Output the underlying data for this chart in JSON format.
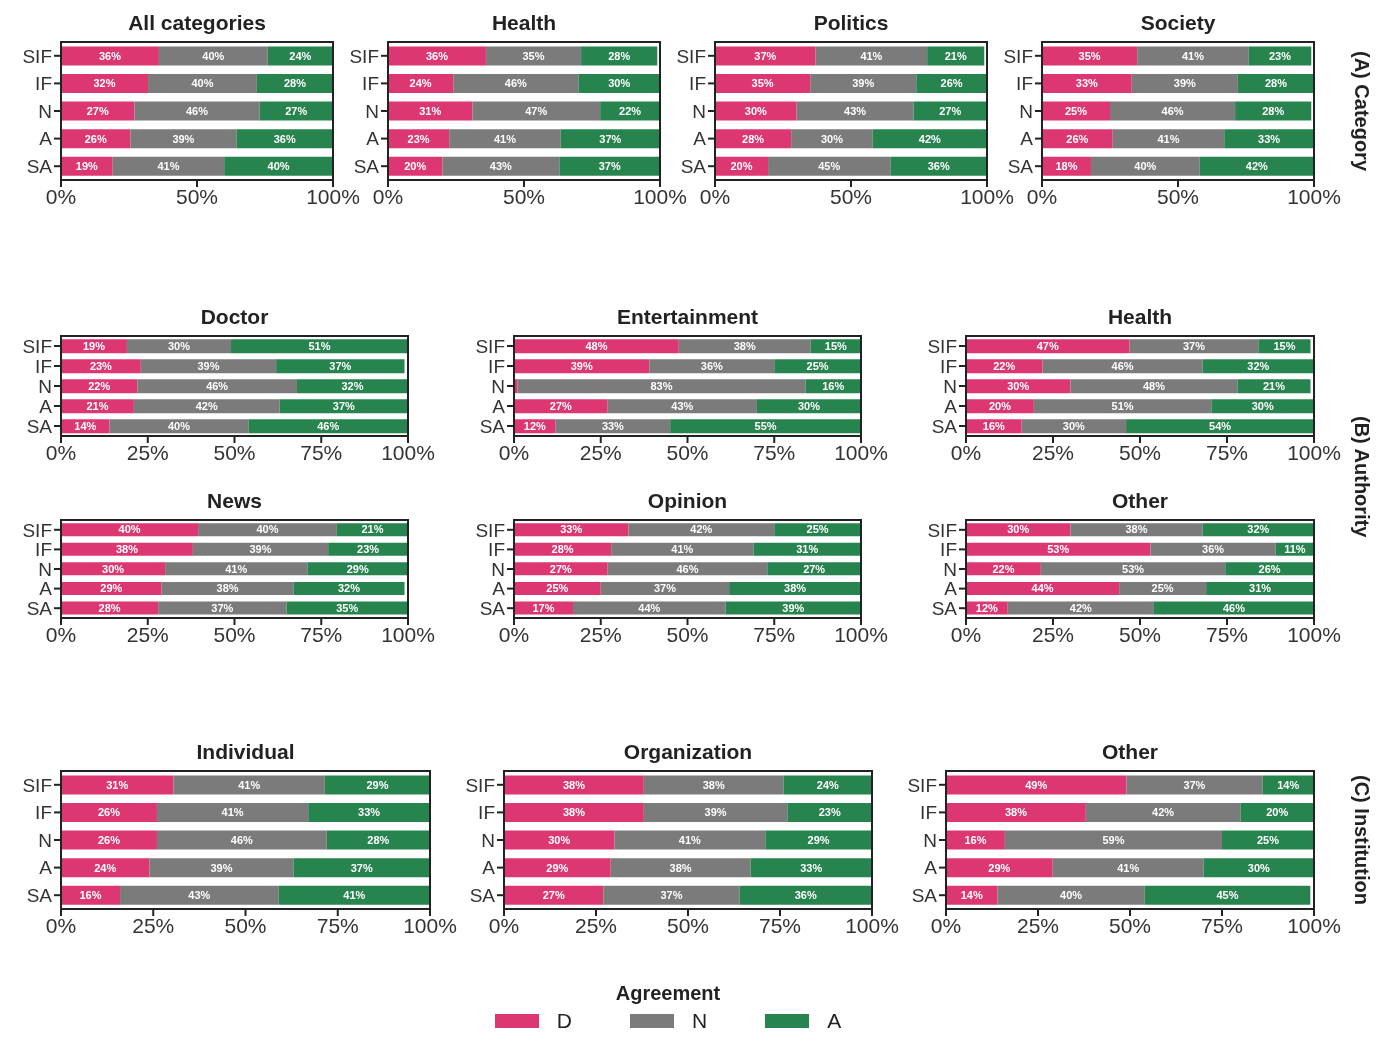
{
  "chart_data": [
    {
      "type": "bar",
      "orientation": "horizontal",
      "stacked": true,
      "title": "All categories",
      "legend": "bottom",
      "legend_title": "Agreement",
      "categories": [
        "SIF",
        "IF",
        "N",
        "A",
        "SA"
      ],
      "xlim": [
        0,
        100
      ],
      "xticks": [
        {
          "value": 0,
          "label": "0%"
        },
        {
          "value": 50,
          "label": "50%"
        },
        {
          "value": 100,
          "label": "100%"
        }
      ],
      "series": [
        {
          "name": "D",
          "color": "#dc3773",
          "values": [
            36,
            32,
            27,
            25.5,
            19
          ],
          "value_labels": [
            "36%",
            "32%",
            "27%",
            "26%",
            "19%"
          ]
        },
        {
          "name": "N",
          "color": "#7b7b7b",
          "values": [
            40,
            40,
            46,
            39,
            41
          ],
          "value_labels": [
            "40%",
            "40%",
            "46%",
            "39%",
            "41%"
          ]
        },
        {
          "name": "A",
          "color": "#27844f",
          "values": [
            24,
            28,
            27,
            35.5,
            40
          ],
          "value_labels": [
            "24%",
            "28%",
            "27%",
            "36%",
            "40%"
          ]
        }
      ]
    },
    {
      "type": "bar",
      "orientation": "horizontal",
      "stacked": true,
      "title": "Health",
      "categories": [
        "SIF",
        "IF",
        "N",
        "A",
        "SA"
      ],
      "xlim": [
        0,
        100
      ],
      "xticks": [
        {
          "value": 0,
          "label": "0%"
        },
        {
          "value": 50,
          "label": "50%"
        },
        {
          "value": 100,
          "label": "100%"
        }
      ],
      "series": [
        {
          "color": "#dc3773",
          "values": [
            36,
            24,
            31,
            22.5,
            20
          ],
          "value_labels": [
            "36%",
            "24%",
            "31%",
            "23%",
            "20%"
          ]
        },
        {
          "color": "#7b7b7b",
          "values": [
            35,
            46,
            47,
            41,
            43
          ],
          "value_labels": [
            "35%",
            "46%",
            "47%",
            "41%",
            "43%"
          ]
        },
        {
          "color": "#27844f",
          "values": [
            28,
            30,
            22,
            36.5,
            37
          ],
          "value_labels": [
            "28%",
            "30%",
            "22%",
            "37%",
            "37%"
          ]
        }
      ]
    },
    {
      "type": "bar",
      "orientation": "horizontal",
      "stacked": true,
      "title": "Politics",
      "categories": [
        "SIF",
        "IF",
        "N",
        "A",
        "SA"
      ],
      "xlim": [
        0,
        100
      ],
      "xticks": [
        {
          "value": 0,
          "label": "0%"
        },
        {
          "value": 50,
          "label": "50%"
        },
        {
          "value": 100,
          "label": "100%"
        }
      ],
      "series": [
        {
          "color": "#dc3773",
          "values": [
            37,
            35,
            30,
            28,
            19.5
          ],
          "value_labels": [
            "37%",
            "35%",
            "30%",
            "28%",
            "20%"
          ]
        },
        {
          "color": "#7b7b7b",
          "values": [
            41,
            39,
            43,
            30,
            45
          ],
          "value_labels": [
            "41%",
            "39%",
            "43%",
            "30%",
            "45%"
          ]
        },
        {
          "color": "#27844f",
          "values": [
            21,
            26,
            27,
            42,
            35.5
          ],
          "value_labels": [
            "21%",
            "26%",
            "27%",
            "42%",
            "36%"
          ]
        }
      ]
    },
    {
      "type": "bar",
      "orientation": "horizontal",
      "stacked": true,
      "title": "Society",
      "annotations": [
        "(A) Category"
      ],
      "categories": [
        "SIF",
        "IF",
        "N",
        "A",
        "SA"
      ],
      "xlim": [
        0,
        100
      ],
      "xticks": [
        {
          "value": 0,
          "label": "0%"
        },
        {
          "value": 50,
          "label": "50%"
        },
        {
          "value": 100,
          "label": "100%"
        }
      ],
      "series": [
        {
          "color": "#dc3773",
          "values": [
            35,
            33,
            25,
            26,
            18
          ],
          "value_labels": [
            "35%",
            "33%",
            "25%",
            "26%",
            "18%"
          ]
        },
        {
          "color": "#7b7b7b",
          "values": [
            41,
            39,
            46,
            41,
            40
          ],
          "value_labels": [
            "41%",
            "39%",
            "46%",
            "41%",
            "40%"
          ]
        },
        {
          "color": "#27844f",
          "values": [
            23,
            28,
            28,
            33,
            42
          ],
          "value_labels": [
            "23%",
            "28%",
            "28%",
            "33%",
            "42%"
          ]
        }
      ]
    },
    {
      "type": "bar",
      "orientation": "horizontal",
      "stacked": true,
      "title": "Doctor",
      "categories": [
        "SIF",
        "IF",
        "N",
        "A",
        "SA"
      ],
      "xlim": [
        0,
        100
      ],
      "xticks": [
        {
          "value": 0,
          "label": "0%"
        },
        {
          "value": 25,
          "label": "25%"
        },
        {
          "value": 50,
          "label": "50%"
        },
        {
          "value": 75,
          "label": "75%"
        },
        {
          "value": 100,
          "label": "100%"
        }
      ],
      "series": [
        {
          "color": "#dc3773",
          "values": [
            19,
            23,
            22,
            21,
            14
          ],
          "value_labels": [
            "19%",
            "23%",
            "22%",
            "21%",
            "14%"
          ]
        },
        {
          "color": "#7b7b7b",
          "values": [
            30,
            39,
            46,
            42,
            40
          ],
          "value_labels": [
            "30%",
            "39%",
            "46%",
            "42%",
            "40%"
          ]
        },
        {
          "color": "#27844f",
          "values": [
            51,
            37,
            32,
            37,
            46
          ],
          "value_labels": [
            "51%",
            "37%",
            "32%",
            "37%",
            "46%"
          ]
        }
      ]
    },
    {
      "type": "bar",
      "orientation": "horizontal",
      "stacked": true,
      "title": "Entertainment",
      "categories": [
        "SIF",
        "IF",
        "N",
        "A",
        "SA"
      ],
      "xlim": [
        0,
        100
      ],
      "xticks": [
        {
          "value": 0,
          "label": "0%"
        },
        {
          "value": 25,
          "label": "25%"
        },
        {
          "value": 50,
          "label": "50%"
        },
        {
          "value": 75,
          "label": "75%"
        },
        {
          "value": 100,
          "label": "100%"
        }
      ],
      "series": [
        {
          "color": "#dc3773",
          "values": [
            47.5,
            39,
            1,
            27,
            12
          ],
          "value_labels": [
            "48%",
            "39%",
            null,
            "27%",
            "12%"
          ]
        },
        {
          "color": "#7b7b7b",
          "values": [
            38,
            36,
            83,
            43,
            33
          ],
          "value_labels": [
            "38%",
            "36%",
            "83%",
            "43%",
            "33%"
          ]
        },
        {
          "color": "#27844f",
          "values": [
            14.5,
            25,
            16,
            30,
            55
          ],
          "value_labels": [
            "15%",
            "25%",
            "16%",
            "30%",
            "55%"
          ]
        }
      ]
    },
    {
      "type": "bar",
      "orientation": "horizontal",
      "stacked": true,
      "title": "Health",
      "categories": [
        "SIF",
        "IF",
        "N",
        "A",
        "SA"
      ],
      "xlim": [
        0,
        100
      ],
      "xticks": [
        {
          "value": 0,
          "label": "0%"
        },
        {
          "value": 25,
          "label": "25%"
        },
        {
          "value": 50,
          "label": "50%"
        },
        {
          "value": 75,
          "label": "75%"
        },
        {
          "value": 100,
          "label": "100%"
        }
      ],
      "series": [
        {
          "color": "#dc3773",
          "values": [
            47,
            22,
            30,
            19.5,
            16
          ],
          "value_labels": [
            "47%",
            "22%",
            "30%",
            "20%",
            "16%"
          ]
        },
        {
          "color": "#7b7b7b",
          "values": [
            37,
            46,
            48,
            51,
            30
          ],
          "value_labels": [
            "37%",
            "46%",
            "48%",
            "51%",
            "30%"
          ]
        },
        {
          "color": "#27844f",
          "values": [
            15,
            32,
            21,
            29.5,
            54
          ],
          "value_labels": [
            "15%",
            "32%",
            "21%",
            "30%",
            "54%"
          ]
        }
      ]
    },
    {
      "type": "bar",
      "orientation": "horizontal",
      "stacked": true,
      "title": "News",
      "categories": [
        "SIF",
        "IF",
        "N",
        "A",
        "SA"
      ],
      "xlim": [
        0,
        100
      ],
      "xticks": [
        {
          "value": 0,
          "label": "0%"
        },
        {
          "value": 25,
          "label": "25%"
        },
        {
          "value": 50,
          "label": "50%"
        },
        {
          "value": 75,
          "label": "75%"
        },
        {
          "value": 100,
          "label": "100%"
        }
      ],
      "series": [
        {
          "color": "#dc3773",
          "values": [
            39.5,
            38,
            30,
            29,
            28
          ],
          "value_labels": [
            "40%",
            "38%",
            "30%",
            "29%",
            "28%"
          ]
        },
        {
          "color": "#7b7b7b",
          "values": [
            40,
            39,
            41,
            38,
            37
          ],
          "value_labels": [
            "40%",
            "39%",
            "41%",
            "38%",
            "37%"
          ]
        },
        {
          "color": "#27844f",
          "values": [
            20.5,
            23,
            29,
            32,
            35
          ],
          "value_labels": [
            "21%",
            "23%",
            "29%",
            "32%",
            "35%"
          ]
        }
      ]
    },
    {
      "type": "bar",
      "orientation": "horizontal",
      "stacked": true,
      "title": "Opinion",
      "categories": [
        "SIF",
        "IF",
        "N",
        "A",
        "SA"
      ],
      "xlim": [
        0,
        100
      ],
      "xticks": [
        {
          "value": 0,
          "label": "0%"
        },
        {
          "value": 25,
          "label": "25%"
        },
        {
          "value": 50,
          "label": "50%"
        },
        {
          "value": 75,
          "label": "75%"
        },
        {
          "value": 100,
          "label": "100%"
        }
      ],
      "series": [
        {
          "color": "#dc3773",
          "values": [
            33,
            28,
            27,
            25,
            17
          ],
          "value_labels": [
            "33%",
            "28%",
            "27%",
            "25%",
            "17%"
          ]
        },
        {
          "color": "#7b7b7b",
          "values": [
            42,
            41,
            46,
            37,
            44
          ],
          "value_labels": [
            "42%",
            "41%",
            "46%",
            "37%",
            "44%"
          ]
        },
        {
          "color": "#27844f",
          "values": [
            25,
            31,
            27,
            38,
            39
          ],
          "value_labels": [
            "25%",
            "31%",
            "27%",
            "38%",
            "39%"
          ]
        }
      ]
    },
    {
      "type": "bar",
      "orientation": "horizontal",
      "stacked": true,
      "title": "Other",
      "annotations": [
        "(B) Authority"
      ],
      "categories": [
        "SIF",
        "IF",
        "N",
        "A",
        "SA"
      ],
      "xlim": [
        0,
        100
      ],
      "xticks": [
        {
          "value": 0,
          "label": "0%"
        },
        {
          "value": 25,
          "label": "25%"
        },
        {
          "value": 50,
          "label": "50%"
        },
        {
          "value": 75,
          "label": "75%"
        },
        {
          "value": 100,
          "label": "100%"
        }
      ],
      "series": [
        {
          "color": "#dc3773",
          "values": [
            30,
            53,
            21.5,
            44,
            12
          ],
          "value_labels": [
            "30%",
            "53%",
            "22%",
            "44%",
            "12%"
          ]
        },
        {
          "color": "#7b7b7b",
          "values": [
            38,
            36,
            53,
            25,
            42
          ],
          "value_labels": [
            "38%",
            "36%",
            "53%",
            "25%",
            "42%"
          ]
        },
        {
          "color": "#27844f",
          "values": [
            32,
            11,
            25.5,
            31,
            46
          ],
          "value_labels": [
            "32%",
            "11%",
            "26%",
            "31%",
            "46%"
          ]
        }
      ]
    },
    {
      "type": "bar",
      "orientation": "horizontal",
      "stacked": true,
      "title": "Individual",
      "categories": [
        "SIF",
        "IF",
        "N",
        "A",
        "SA"
      ],
      "xlim": [
        0,
        100
      ],
      "xticks": [
        {
          "value": 0,
          "label": "0%"
        },
        {
          "value": 25,
          "label": "25%"
        },
        {
          "value": 50,
          "label": "50%"
        },
        {
          "value": 75,
          "label": "75%"
        },
        {
          "value": 100,
          "label": "100%"
        }
      ],
      "series": [
        {
          "color": "#dc3773",
          "values": [
            30.5,
            26,
            26,
            24,
            16
          ],
          "value_labels": [
            "31%",
            "26%",
            "26%",
            "24%",
            "16%"
          ]
        },
        {
          "color": "#7b7b7b",
          "values": [
            41,
            41,
            46,
            39,
            43
          ],
          "value_labels": [
            "41%",
            "41%",
            "46%",
            "39%",
            "43%"
          ]
        },
        {
          "color": "#27844f",
          "values": [
            28.5,
            33,
            28,
            37,
            41
          ],
          "value_labels": [
            "29%",
            "33%",
            "28%",
            "37%",
            "41%"
          ]
        }
      ]
    },
    {
      "type": "bar",
      "orientation": "horizontal",
      "stacked": true,
      "title": "Organization",
      "categories": [
        "SIF",
        "IF",
        "N",
        "A",
        "SA"
      ],
      "xlim": [
        0,
        100
      ],
      "xticks": [
        {
          "value": 0,
          "label": "0%"
        },
        {
          "value": 25,
          "label": "25%"
        },
        {
          "value": 50,
          "label": "50%"
        },
        {
          "value": 75,
          "label": "75%"
        },
        {
          "value": 100,
          "label": "100%"
        }
      ],
      "series": [
        {
          "color": "#dc3773",
          "values": [
            38,
            38,
            30,
            29,
            27
          ],
          "value_labels": [
            "38%",
            "38%",
            "30%",
            "29%",
            "27%"
          ]
        },
        {
          "color": "#7b7b7b",
          "values": [
            38,
            39,
            41,
            38,
            37
          ],
          "value_labels": [
            "38%",
            "39%",
            "41%",
            "38%",
            "37%"
          ]
        },
        {
          "color": "#27844f",
          "values": [
            24,
            23,
            29,
            33,
            36
          ],
          "value_labels": [
            "24%",
            "23%",
            "29%",
            "33%",
            "36%"
          ]
        }
      ]
    },
    {
      "type": "bar",
      "orientation": "horizontal",
      "stacked": true,
      "title": "Other",
      "annotations": [
        "(C) Institution"
      ],
      "categories": [
        "SIF",
        "IF",
        "N",
        "A",
        "SA"
      ],
      "xlim": [
        0,
        100
      ],
      "xticks": [
        {
          "value": 0,
          "label": "0%"
        },
        {
          "value": 25,
          "label": "25%"
        },
        {
          "value": 50,
          "label": "50%"
        },
        {
          "value": 75,
          "label": "75%"
        },
        {
          "value": 100,
          "label": "100%"
        }
      ],
      "series": [
        {
          "color": "#dc3773",
          "values": [
            49,
            38,
            16,
            29,
            14
          ],
          "value_labels": [
            "49%",
            "38%",
            "16%",
            "29%",
            "14%"
          ]
        },
        {
          "color": "#7b7b7b",
          "values": [
            37,
            42,
            59,
            41,
            40
          ],
          "value_labels": [
            "37%",
            "42%",
            "59%",
            "41%",
            "40%"
          ]
        },
        {
          "color": "#27844f",
          "values": [
            14,
            20,
            25,
            30,
            45
          ],
          "value_labels": [
            "14%",
            "20%",
            "25%",
            "30%",
            "45%"
          ]
        }
      ]
    }
  ]
}
